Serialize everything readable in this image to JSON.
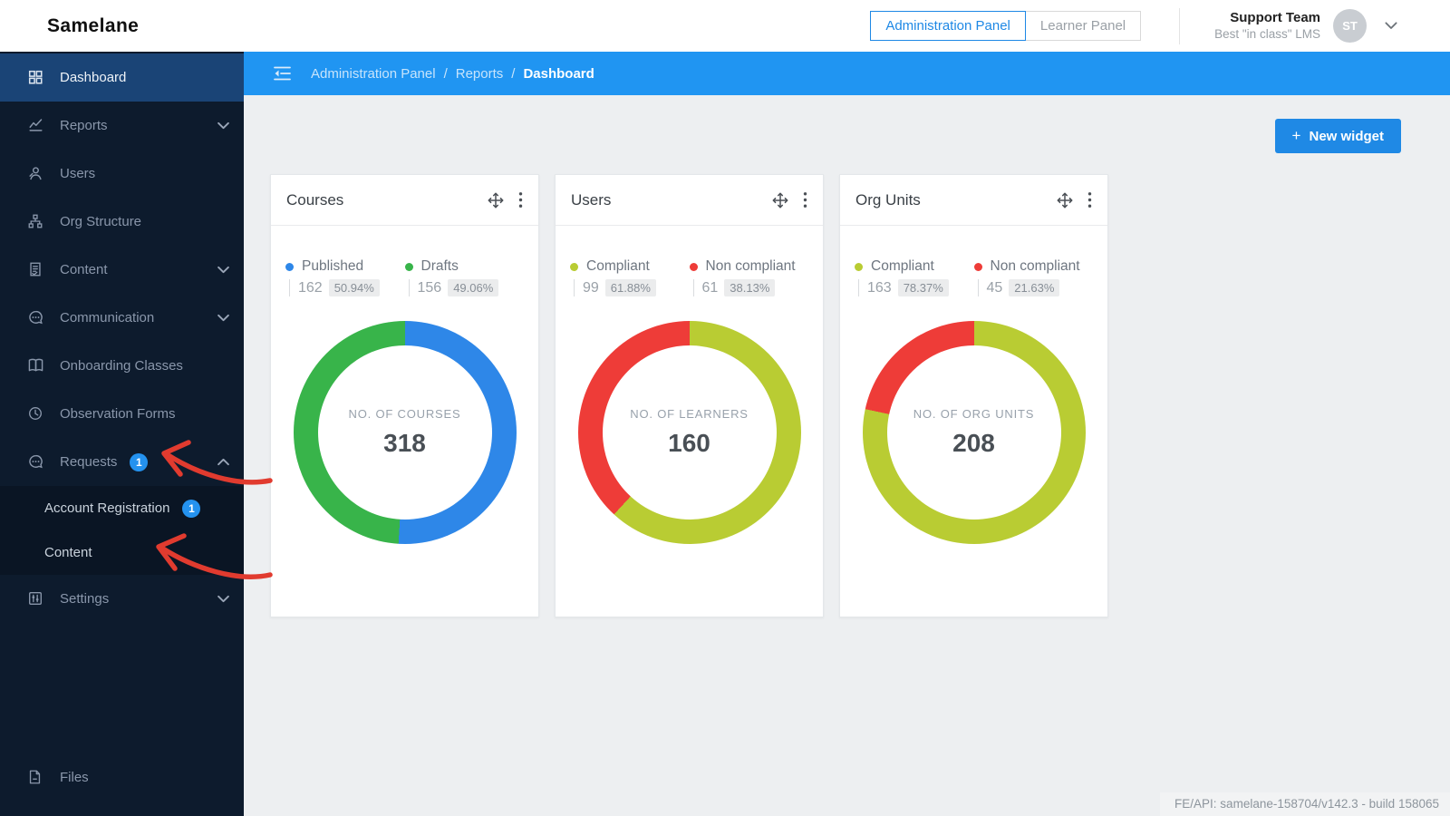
{
  "brand": {
    "name": "Samelane"
  },
  "header": {
    "panel_toggle": {
      "admin_label": "Administration Panel",
      "learner_label": "Learner Panel",
      "active": "Administration Panel"
    },
    "user": {
      "name": "Support Team",
      "subtitle": "Best \"in class\" LMS",
      "avatar_initials": "ST"
    }
  },
  "sidebar": {
    "items": [
      {
        "label": "Dashboard",
        "icon": "grid-icon",
        "active": true
      },
      {
        "label": "Reports",
        "icon": "chart-icon",
        "chevron": "down"
      },
      {
        "label": "Users",
        "icon": "user-icon"
      },
      {
        "label": "Org Structure",
        "icon": "hierarchy-icon"
      },
      {
        "label": "Content",
        "icon": "document-icon",
        "chevron": "down"
      },
      {
        "label": "Communication",
        "icon": "chat-icon",
        "chevron": "down"
      },
      {
        "label": "Onboarding Classes",
        "icon": "book-icon"
      },
      {
        "label": "Observation Forms",
        "icon": "clock-icon"
      },
      {
        "label": "Requests",
        "icon": "chat-icon",
        "badge": "1",
        "chevron": "up"
      },
      {
        "label": "Account Registration",
        "badge": "1",
        "submenu": true
      },
      {
        "label": "Content",
        "submenu": true
      },
      {
        "label": "Settings",
        "icon": "sliders-icon",
        "chevron": "down"
      }
    ],
    "bottom_item": {
      "label": "Files",
      "icon": "file-icon"
    }
  },
  "breadcrumb": {
    "separator": "/",
    "items": [
      "Administration Panel",
      "Reports",
      "Dashboard"
    ]
  },
  "actions": {
    "new_widget": {
      "plus": "+",
      "label": "New widget"
    }
  },
  "chart_data": [
    {
      "type": "donut",
      "title": "Courses",
      "center_label": "NO. OF COURSES",
      "total": "318",
      "series": [
        {
          "name": "Published",
          "value": 162,
          "percent": "50.94%",
          "color": "#2e87e8"
        },
        {
          "name": "Drafts",
          "value": 156,
          "percent": "49.06%",
          "color": "#38b44a"
        }
      ]
    },
    {
      "type": "donut",
      "title": "Users",
      "center_label": "NO. OF LEARNERS",
      "total": "160",
      "series": [
        {
          "name": "Compliant",
          "value": 99,
          "percent": "61.88%",
          "color": "#b9cc33"
        },
        {
          "name": "Non compliant",
          "value": 61,
          "percent": "38.13%",
          "color": "#ee3c38"
        }
      ]
    },
    {
      "type": "donut",
      "title": "Org Units",
      "center_label": "NO. OF ORG UNITS",
      "total": "208",
      "series": [
        {
          "name": "Compliant",
          "value": 163,
          "percent": "78.37%",
          "color": "#b9cc33"
        },
        {
          "name": "Non compliant",
          "value": 45,
          "percent": "21.63%",
          "color": "#ee3c38"
        }
      ]
    }
  ],
  "annotations": {
    "arrows": [
      {
        "color": "#e13b2f",
        "points_to": "sidebar-item-requests"
      },
      {
        "color": "#e13b2f",
        "points_to": "sidebar-item-content-sub"
      }
    ]
  },
  "footer": {
    "build_info": "FE/API: samelane-158704/v142.3 - build 158065"
  }
}
